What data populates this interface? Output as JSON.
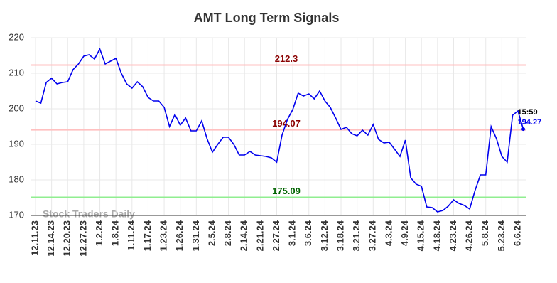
{
  "chart_data": {
    "type": "line",
    "title": "AMT Long Term Signals",
    "watermark": "Stock Traders Daily",
    "last_time": "15:59",
    "categories": [
      "12.11.23",
      null,
      null,
      "12.14.23",
      null,
      null,
      "12.20.23",
      null,
      null,
      "12.27.23",
      null,
      null,
      "1.2.24",
      null,
      null,
      "1.8.24",
      null,
      null,
      "1.11.24",
      null,
      null,
      "1.17.24",
      null,
      null,
      "1.23.24",
      null,
      null,
      "1.26.24",
      null,
      null,
      "1.31.24",
      null,
      null,
      "2.5.24",
      null,
      null,
      "2.8.24",
      null,
      null,
      "2.14.24",
      null,
      null,
      "2.21.24",
      null,
      null,
      "2.27.24",
      null,
      null,
      "3.1.24",
      null,
      null,
      "3.6.24",
      null,
      null,
      "3.12.24",
      null,
      null,
      "3.18.24",
      null,
      null,
      "3.21.24",
      null,
      null,
      "3.27.24",
      null,
      null,
      "4.3.24",
      null,
      null,
      "4.9.24",
      null,
      null,
      "4.15.24",
      null,
      null,
      "4.18.24",
      null,
      null,
      "4.23.24",
      null,
      null,
      "4.26.24",
      null,
      null,
      "5.8.24",
      null,
      null,
      "5.23.24",
      null,
      null,
      "6.6.24",
      null
    ],
    "series": [
      {
        "color": "#0000ee",
        "values": [
          202.2,
          201.6,
          207.4,
          208.6,
          207.0,
          207.4,
          207.6,
          211.0,
          212.6,
          214.8,
          215.2,
          214.0,
          216.8,
          212.6,
          213.4,
          214.2,
          210.0,
          207.0,
          205.8,
          207.6,
          206.2,
          203.2,
          202.2,
          202.2,
          200.4,
          195.0,
          198.4,
          195.4,
          197.4,
          193.8,
          193.8,
          196.6,
          191.6,
          187.8,
          190.0,
          192.0,
          192.0,
          190.0,
          187.0,
          187.0,
          188.0,
          187.0,
          186.8,
          186.6,
          186.2,
          185.0,
          192.6,
          197.0,
          199.8,
          204.4,
          203.6,
          204.2,
          202.8,
          205.0,
          202.2,
          200.4,
          197.4,
          194.2,
          194.8,
          193.0,
          192.4,
          194.0,
          192.6,
          195.6,
          191.4,
          190.4,
          190.6,
          188.6,
          186.6,
          191.2,
          180.6,
          178.8,
          178.2,
          172.4,
          172.2,
          171.0,
          171.4,
          172.6,
          174.4,
          173.4,
          172.8,
          171.8,
          177.0,
          181.4,
          181.4,
          195.0,
          191.6,
          186.6,
          185.0,
          198.2,
          199.4,
          194.27
        ]
      }
    ],
    "reference_lines": [
      {
        "value": 212.3,
        "color": "#ffc0c0",
        "label_color": "#8b0000"
      },
      {
        "value": 194.07,
        "color": "#ffc0c0",
        "label_color": "#8b0000"
      },
      {
        "value": 175.09,
        "color": "#90ee90",
        "label_color": "#006400"
      }
    ],
    "ylim": [
      170,
      220
    ],
    "yticks": [
      170,
      180,
      190,
      200,
      210,
      220
    ],
    "grid": true
  }
}
